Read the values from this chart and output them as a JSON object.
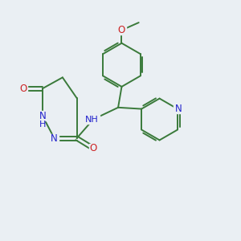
{
  "background_color": "#eaeff3",
  "bond_color": "#3a7a3a",
  "nitrogen_color": "#2222cc",
  "oxygen_color": "#cc2222",
  "figsize": [
    3.0,
    3.0
  ],
  "dpi": 100,
  "xlim": [
    0,
    10
  ],
  "ylim": [
    0,
    10
  ]
}
